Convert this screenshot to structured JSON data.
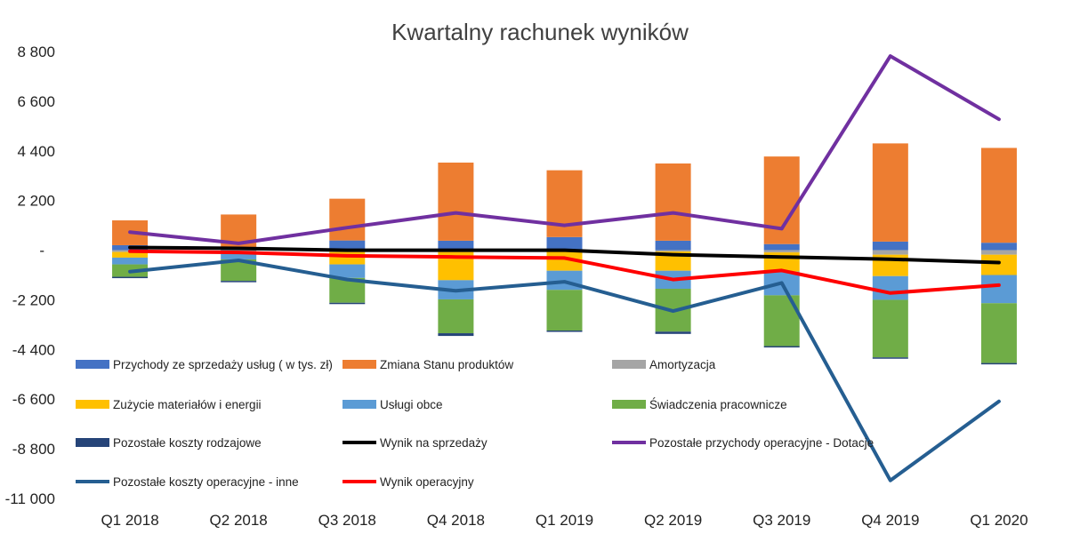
{
  "chart_data": {
    "type": "bar",
    "stacked": true,
    "title": "Kwartalny rachunek wyników",
    "categories": [
      "Q1 2018",
      "Q2 2018",
      "Q3 2018",
      "Q4 2018",
      "Q1 2019",
      "Q2 2019",
      "Q3 2019",
      "Q4 2019",
      "Q1 2020"
    ],
    "y_ticks": [
      "8 800",
      "6 600",
      "4 400",
      "2 200",
      "-",
      "-2 200",
      "-4 400",
      "-6 600",
      "-8 800",
      "-11 000"
    ],
    "ylim": [
      -11000,
      8800
    ],
    "grid": false,
    "legend_position": "inside-bottom",
    "bar_series": [
      {
        "name": "Przychody ze sprzedaży usług ( w tys. zł)",
        "color": "#4472C4",
        "values": [
          220,
          80,
          430,
          420,
          580,
          420,
          270,
          380,
          330
        ]
      },
      {
        "name": "Zmiana Stanu produktów",
        "color": "#ED7D31",
        "values": [
          1100,
          1500,
          1850,
          3460,
          2960,
          3420,
          3880,
          4350,
          4200
        ]
      },
      {
        "name": "Amortyzacja",
        "color": "#A5A5A5",
        "values": [
          -80,
          -60,
          -80,
          -80,
          -60,
          -60,
          -100,
          -200,
          -200
        ]
      },
      {
        "name": "Zużycie materiałów i energii",
        "color": "#FFC000",
        "values": [
          -250,
          -100,
          -550,
          -1250,
          -850,
          -850,
          -850,
          -950,
          -900
        ]
      },
      {
        "name": "Usługi obce",
        "color": "#5B9BD5",
        "values": [
          -300,
          -250,
          -600,
          -850,
          -850,
          -800,
          -1050,
          -1050,
          -1250
        ]
      },
      {
        "name": "Świadczenia pracownicze",
        "color": "#70AD47",
        "values": [
          -550,
          -950,
          -1100,
          -1500,
          -1800,
          -1900,
          -2250,
          -2550,
          -2650
        ]
      },
      {
        "name": "Pozostałe koszty rodzajowe",
        "color": "#264478",
        "values": [
          -60,
          -60,
          -60,
          -120,
          -60,
          -100,
          -60,
          -60,
          -60
        ]
      }
    ],
    "line_series": [
      {
        "name": "Wynik na sprzedaży",
        "color": "#000000",
        "values": [
          120,
          80,
          0,
          0,
          0,
          -200,
          -300,
          -400,
          -550
        ]
      },
      {
        "name": "Pozostałe przychody operacyjne - Dotacje",
        "color": "#7030A0",
        "values": [
          800,
          300,
          1000,
          1650,
          1100,
          1650,
          950,
          8600,
          5800
        ]
      },
      {
        "name": "Pozostałe koszty operacyjne - inne",
        "color": "#255E91",
        "values": [
          -950,
          -450,
          -1300,
          -1800,
          -1400,
          -2700,
          -1450,
          -10200,
          -6700
        ]
      },
      {
        "name": "Wynik operacyjny",
        "color": "#FF0000",
        "values": [
          -50,
          -100,
          -250,
          -300,
          -350,
          -1300,
          -900,
          -1900,
          -1550
        ]
      }
    ],
    "legend": [
      {
        "name": "Przychody ze sprzedaży usług ( w tys. zł)",
        "kind": "bar",
        "color": "#4472C4"
      },
      {
        "name": "Zmiana Stanu produktów",
        "kind": "bar",
        "color": "#ED7D31"
      },
      {
        "name": "Amortyzacja",
        "kind": "bar",
        "color": "#A5A5A5"
      },
      {
        "name": "Zużycie materiałów i energii",
        "kind": "bar",
        "color": "#FFC000"
      },
      {
        "name": "Usługi obce",
        "kind": "bar",
        "color": "#5B9BD5"
      },
      {
        "name": "Świadczenia pracownicze",
        "kind": "bar",
        "color": "#70AD47"
      },
      {
        "name": "Pozostałe koszty rodzajowe",
        "kind": "bar",
        "color": "#264478"
      },
      {
        "name": "Wynik na sprzedaży",
        "kind": "line",
        "color": "#000000"
      },
      {
        "name": "Pozostałe przychody operacyjne - Dotacje",
        "kind": "line",
        "color": "#7030A0"
      },
      {
        "name": "Pozostałe koszty operacyjne - inne",
        "kind": "line",
        "color": "#255E91"
      },
      {
        "name": "Wynik operacyjny",
        "kind": "line",
        "color": "#FF0000"
      }
    ]
  }
}
